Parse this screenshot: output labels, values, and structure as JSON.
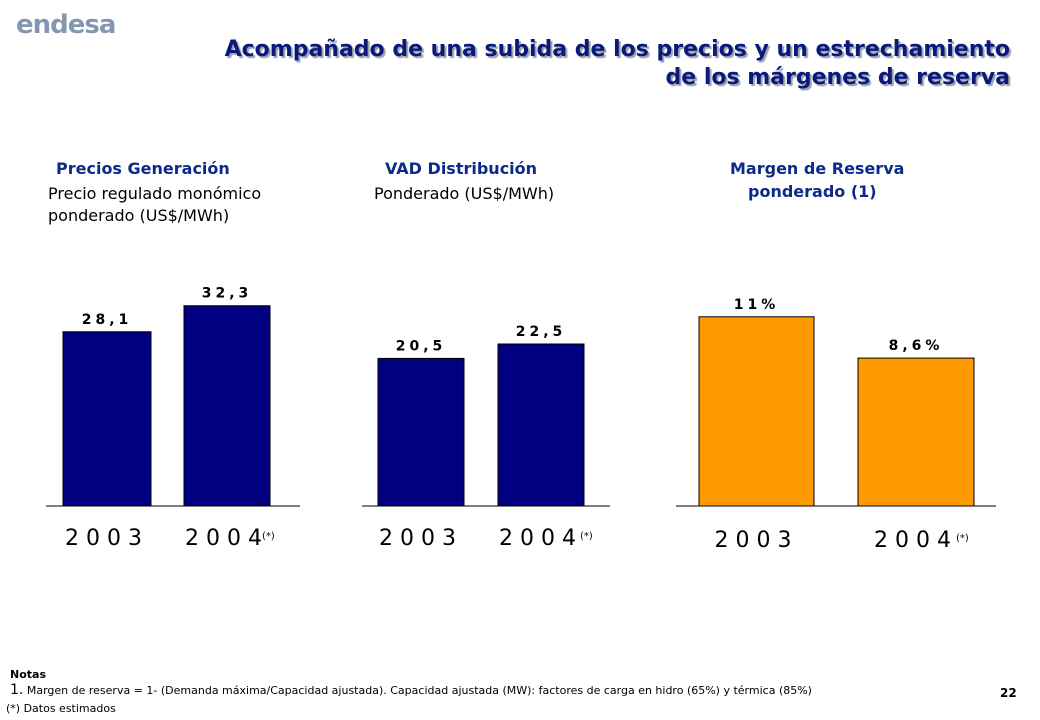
{
  "logo": "endesa",
  "title_line1": "Acompañado de una subida de los precios y un estrechamiento",
  "title_line2": "de los márgenes de reserva",
  "colors": {
    "navy": "#000080",
    "orange": "#ff9900",
    "heading": "#0b2a8a"
  },
  "panels": [
    {
      "heading": "Precios Generación",
      "sub1": "Precio regulado monómico",
      "sub2": "ponderado (US$/MWh)"
    },
    {
      "heading": "VAD Distribución",
      "sub1": "Ponderado (US$/MWh)",
      "sub2": ""
    },
    {
      "heading": "Margen de Reserva",
      "sub1": "ponderado (1)",
      "sub2": ""
    }
  ],
  "chart_data": [
    {
      "type": "bar",
      "categories": [
        "2003",
        "2004"
      ],
      "values": [
        28.1,
        32.3
      ],
      "value_labels": [
        "28,1",
        "32,3"
      ],
      "color": "#000080",
      "annotation": "(*)"
    },
    {
      "type": "bar",
      "categories": [
        "2003",
        "2004"
      ],
      "values": [
        20.5,
        22.5
      ],
      "value_labels": [
        "20,5",
        "22,5"
      ],
      "color": "#000080",
      "annotation": "(*)"
    },
    {
      "type": "bar",
      "categories": [
        "2003",
        "2004"
      ],
      "values": [
        11,
        8.6
      ],
      "value_labels": [
        "11%",
        "8,6%"
      ],
      "color": "#ff9900",
      "annotation": "(*)"
    }
  ],
  "notes": {
    "heading": "Notas",
    "note1_num": "1.",
    "note1_text": " Margen de reserva = 1- (Demanda máxima/Capacidad ajustada). Capacidad ajustada (MW): factores de carga en hidro (65%) y térmica (85%)",
    "note2": "(*) Datos estimados"
  },
  "page_number": "22"
}
